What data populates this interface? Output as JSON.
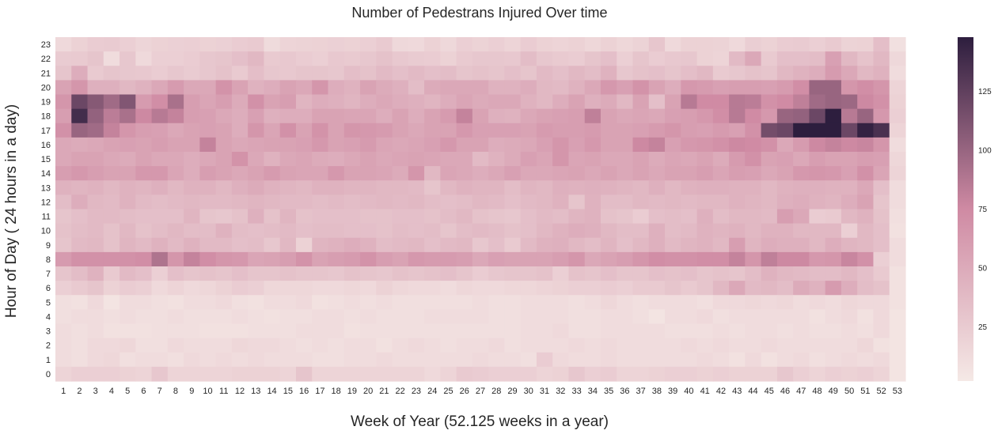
{
  "chart_data": {
    "type": "heatmap",
    "title": "Number of Pedestrans Injured Over time",
    "xlabel": "Week of Year (52.125 weeks in a year)",
    "ylabel": "Hour of Day ( 24 hours in a day)",
    "x": [
      1,
      2,
      3,
      4,
      5,
      6,
      7,
      8,
      9,
      10,
      11,
      12,
      13,
      14,
      15,
      16,
      17,
      18,
      19,
      20,
      21,
      22,
      23,
      24,
      25,
      26,
      27,
      28,
      29,
      30,
      31,
      32,
      33,
      34,
      35,
      36,
      37,
      38,
      39,
      40,
      41,
      42,
      43,
      44,
      45,
      46,
      47,
      48,
      49,
      50,
      51,
      52,
      53
    ],
    "y": [
      23,
      22,
      21,
      20,
      19,
      18,
      17,
      16,
      15,
      14,
      13,
      12,
      11,
      10,
      9,
      8,
      7,
      6,
      5,
      4,
      3,
      2,
      1,
      0
    ],
    "colorbar": {
      "ticks": [
        25,
        50,
        75,
        100,
        125
      ],
      "range": [
        2,
        148
      ]
    },
    "colormap": {
      "low": "#f5e9e6",
      "mid": "#cf8aa3",
      "high": "#2d1e3e"
    },
    "values": [
      [
        14,
        20,
        24,
        25,
        22,
        17,
        20,
        21,
        22,
        20,
        21,
        24,
        26,
        13,
        18,
        19,
        20,
        21,
        20,
        22,
        26,
        15,
        14,
        20,
        15,
        22,
        19,
        22,
        18,
        24,
        20,
        18,
        20,
        16,
        20,
        16,
        19,
        29,
        14,
        20,
        20,
        19,
        14,
        23,
        20,
        24,
        25,
        22,
        26,
        19,
        20,
        35,
        9
      ],
      [
        25,
        26,
        30,
        12,
        28,
        14,
        22,
        22,
        24,
        28,
        30,
        34,
        40,
        26,
        27,
        24,
        22,
        27,
        26,
        28,
        32,
        27,
        25,
        24,
        20,
        26,
        28,
        28,
        27,
        36,
        28,
        26,
        24,
        30,
        34,
        22,
        30,
        24,
        27,
        28,
        20,
        18,
        38,
        52,
        26,
        34,
        34,
        36,
        58,
        40,
        31,
        40,
        15
      ],
      [
        30,
        48,
        26,
        30,
        28,
        27,
        24,
        28,
        25,
        28,
        32,
        26,
        35,
        28,
        27,
        30,
        30,
        28,
        35,
        32,
        38,
        34,
        38,
        34,
        36,
        30,
        32,
        30,
        34,
        30,
        38,
        34,
        40,
        36,
        44,
        28,
        32,
        34,
        30,
        35,
        40,
        26,
        28,
        32,
        30,
        40,
        44,
        48,
        62,
        52,
        40,
        44,
        12
      ],
      [
        56,
        66,
        46,
        46,
        40,
        44,
        52,
        62,
        52,
        52,
        68,
        56,
        44,
        48,
        56,
        52,
        66,
        48,
        44,
        56,
        50,
        46,
        36,
        50,
        52,
        52,
        52,
        44,
        44,
        48,
        40,
        38,
        44,
        52,
        64,
        58,
        68,
        56,
        48,
        64,
        62,
        58,
        60,
        60,
        58,
        62,
        72,
        100,
        100,
        66,
        72,
        66,
        18
      ],
      [
        66,
        120,
        108,
        96,
        110,
        62,
        72,
        92,
        60,
        54,
        60,
        50,
        70,
        56,
        60,
        42,
        48,
        46,
        42,
        48,
        52,
        48,
        46,
        42,
        48,
        54,
        50,
        52,
        52,
        44,
        40,
        48,
        56,
        46,
        50,
        40,
        56,
        34,
        56,
        86,
        74,
        74,
        86,
        84,
        70,
        74,
        82,
        96,
        100,
        98,
        76,
        70,
        20
      ],
      [
        60,
        138,
        102,
        84,
        92,
        76,
        86,
        80,
        60,
        58,
        52,
        48,
        58,
        46,
        48,
        48,
        56,
        56,
        54,
        54,
        48,
        56,
        48,
        56,
        62,
        80,
        56,
        46,
        44,
        52,
        56,
        58,
        60,
        82,
        56,
        52,
        54,
        52,
        58,
        60,
        64,
        72,
        86,
        74,
        64,
        100,
        102,
        120,
        148,
        86,
        100,
        64,
        22
      ],
      [
        70,
        100,
        96,
        80,
        66,
        60,
        58,
        52,
        56,
        58,
        56,
        48,
        66,
        54,
        70,
        56,
        68,
        56,
        66,
        64,
        62,
        56,
        52,
        56,
        56,
        64,
        58,
        58,
        58,
        56,
        62,
        60,
        60,
        62,
        56,
        56,
        58,
        62,
        66,
        60,
        58,
        62,
        58,
        70,
        116,
        120,
        148,
        148,
        148,
        120,
        145,
        135,
        18
      ],
      [
        52,
        50,
        52,
        56,
        58,
        56,
        60,
        56,
        56,
        80,
        56,
        52,
        54,
        56,
        56,
        58,
        64,
        56,
        58,
        62,
        54,
        52,
        54,
        58,
        64,
        56,
        56,
        48,
        50,
        52,
        58,
        66,
        58,
        64,
        56,
        56,
        76,
        80,
        58,
        64,
        66,
        70,
        76,
        74,
        70,
        52,
        62,
        76,
        80,
        76,
        78,
        66,
        12
      ],
      [
        52,
        56,
        56,
        52,
        50,
        56,
        52,
        52,
        48,
        52,
        56,
        68,
        52,
        44,
        52,
        54,
        50,
        48,
        52,
        56,
        52,
        54,
        56,
        54,
        52,
        52,
        38,
        44,
        50,
        58,
        54,
        66,
        54,
        56,
        52,
        52,
        56,
        50,
        54,
        52,
        56,
        50,
        62,
        70,
        56,
        58,
        52,
        60,
        56,
        56,
        60,
        58,
        16
      ],
      [
        60,
        64,
        60,
        56,
        56,
        64,
        64,
        54,
        48,
        60,
        56,
        52,
        56,
        62,
        56,
        54,
        54,
        64,
        56,
        56,
        54,
        50,
        66,
        40,
        54,
        52,
        48,
        52,
        58,
        52,
        52,
        54,
        56,
        52,
        56,
        52,
        56,
        52,
        56,
        56,
        60,
        54,
        60,
        58,
        52,
        56,
        64,
        66,
        64,
        58,
        70,
        54,
        18
      ],
      [
        44,
        42,
        44,
        40,
        44,
        42,
        46,
        40,
        44,
        44,
        40,
        46,
        50,
        44,
        42,
        40,
        44,
        44,
        42,
        42,
        40,
        40,
        38,
        30,
        40,
        44,
        42,
        42,
        36,
        42,
        40,
        46,
        44,
        46,
        44,
        42,
        40,
        46,
        40,
        44,
        46,
        46,
        44,
        44,
        40,
        44,
        46,
        46,
        44,
        44,
        52,
        34,
        12
      ],
      [
        36,
        48,
        40,
        38,
        44,
        38,
        36,
        38,
        40,
        38,
        38,
        40,
        42,
        40,
        38,
        38,
        36,
        38,
        36,
        38,
        40,
        38,
        40,
        36,
        34,
        36,
        40,
        38,
        34,
        38,
        40,
        44,
        30,
        44,
        36,
        36,
        40,
        38,
        40,
        38,
        40,
        40,
        44,
        42,
        40,
        46,
        48,
        44,
        42,
        48,
        56,
        30,
        12
      ],
      [
        30,
        34,
        38,
        38,
        36,
        34,
        34,
        34,
        42,
        30,
        28,
        32,
        46,
        32,
        42,
        32,
        34,
        34,
        34,
        32,
        32,
        34,
        34,
        32,
        36,
        40,
        32,
        30,
        28,
        34,
        38,
        36,
        42,
        44,
        32,
        30,
        24,
        34,
        36,
        34,
        46,
        36,
        40,
        40,
        38,
        60,
        52,
        24,
        26,
        40,
        44,
        32,
        10
      ],
      [
        32,
        36,
        38,
        32,
        40,
        32,
        36,
        40,
        36,
        36,
        44,
        36,
        34,
        36,
        38,
        34,
        36,
        36,
        34,
        34,
        32,
        36,
        34,
        36,
        30,
        36,
        38,
        36,
        32,
        34,
        40,
        44,
        48,
        46,
        40,
        36,
        36,
        46,
        36,
        38,
        44,
        42,
        44,
        40,
        44,
        44,
        40,
        40,
        40,
        22,
        40,
        34,
        8
      ],
      [
        30,
        38,
        40,
        32,
        42,
        38,
        44,
        38,
        44,
        38,
        38,
        34,
        36,
        28,
        40,
        20,
        42,
        44,
        48,
        44,
        36,
        38,
        40,
        34,
        38,
        40,
        28,
        34,
        26,
        38,
        44,
        46,
        40,
        36,
        42,
        34,
        40,
        46,
        38,
        42,
        44,
        40,
        60,
        42,
        48,
        46,
        46,
        40,
        48,
        42,
        40,
        34,
        12
      ],
      [
        62,
        70,
        70,
        70,
        70,
        72,
        90,
        66,
        80,
        72,
        66,
        64,
        54,
        56,
        60,
        68,
        56,
        60,
        62,
        68,
        60,
        56,
        64,
        62,
        62,
        60,
        52,
        58,
        56,
        56,
        56,
        60,
        66,
        52,
        56,
        60,
        66,
        72,
        70,
        70,
        72,
        72,
        80,
        66,
        82,
        76,
        76,
        64,
        66,
        78,
        70,
        22,
        12
      ],
      [
        30,
        36,
        44,
        26,
        38,
        34,
        22,
        34,
        30,
        32,
        30,
        34,
        30,
        30,
        32,
        30,
        30,
        28,
        32,
        30,
        28,
        32,
        30,
        32,
        34,
        30,
        24,
        28,
        30,
        30,
        32,
        22,
        32,
        30,
        34,
        30,
        30,
        34,
        32,
        34,
        30,
        32,
        30,
        36,
        44,
        40,
        38,
        36,
        36,
        40,
        34,
        26,
        8
      ],
      [
        22,
        26,
        30,
        20,
        24,
        22,
        14,
        18,
        14,
        16,
        20,
        24,
        22,
        16,
        16,
        16,
        14,
        14,
        16,
        14,
        20,
        16,
        14,
        14,
        12,
        16,
        14,
        14,
        16,
        16,
        18,
        20,
        22,
        22,
        24,
        22,
        26,
        26,
        30,
        26,
        30,
        40,
        52,
        38,
        40,
        36,
        50,
        44,
        62,
        48,
        36,
        32,
        8
      ],
      [
        10,
        8,
        14,
        6,
        12,
        12,
        10,
        8,
        12,
        12,
        14,
        10,
        8,
        12,
        12,
        14,
        8,
        10,
        12,
        10,
        12,
        10,
        10,
        10,
        10,
        10,
        12,
        10,
        10,
        12,
        12,
        12,
        10,
        12,
        16,
        12,
        10,
        12,
        12,
        12,
        10,
        14,
        14,
        16,
        14,
        16,
        12,
        14,
        12,
        16,
        14,
        14,
        8
      ],
      [
        10,
        12,
        12,
        10,
        12,
        10,
        10,
        12,
        10,
        10,
        10,
        12,
        10,
        8,
        10,
        10,
        12,
        12,
        10,
        12,
        10,
        10,
        10,
        12,
        12,
        12,
        12,
        10,
        10,
        12,
        12,
        12,
        10,
        10,
        12,
        12,
        10,
        6,
        12,
        12,
        14,
        10,
        12,
        12,
        12,
        12,
        12,
        8,
        12,
        14,
        8,
        14,
        6
      ],
      [
        12,
        10,
        12,
        8,
        8,
        8,
        10,
        10,
        10,
        8,
        8,
        8,
        10,
        10,
        10,
        12,
        12,
        12,
        8,
        10,
        10,
        10,
        10,
        10,
        10,
        10,
        10,
        10,
        10,
        12,
        12,
        14,
        10,
        10,
        12,
        12,
        12,
        12,
        10,
        10,
        10,
        12,
        10,
        12,
        12,
        10,
        12,
        10,
        10,
        12,
        10,
        14,
        6
      ],
      [
        12,
        10,
        14,
        14,
        16,
        10,
        10,
        14,
        12,
        12,
        12,
        16,
        14,
        14,
        12,
        10,
        12,
        10,
        12,
        12,
        8,
        12,
        14,
        12,
        10,
        12,
        12,
        14,
        10,
        12,
        12,
        12,
        14,
        12,
        14,
        12,
        12,
        12,
        12,
        14,
        12,
        14,
        12,
        12,
        14,
        12,
        12,
        12,
        12,
        12,
        16,
        8,
        6
      ],
      [
        12,
        10,
        14,
        16,
        10,
        12,
        12,
        10,
        14,
        12,
        14,
        12,
        14,
        12,
        12,
        12,
        10,
        10,
        12,
        12,
        14,
        12,
        12,
        12,
        12,
        12,
        14,
        12,
        12,
        10,
        24,
        14,
        12,
        12,
        14,
        12,
        12,
        12,
        12,
        12,
        14,
        12,
        8,
        14,
        8,
        12,
        14,
        10,
        12,
        14,
        12,
        14,
        6
      ],
      [
        18,
        22,
        22,
        22,
        20,
        18,
        28,
        18,
        18,
        18,
        18,
        20,
        20,
        20,
        18,
        30,
        18,
        18,
        18,
        18,
        18,
        18,
        18,
        14,
        18,
        26,
        24,
        22,
        22,
        22,
        18,
        20,
        28,
        22,
        24,
        18,
        18,
        20,
        22,
        22,
        20,
        22,
        20,
        20,
        20,
        28,
        22,
        18,
        22,
        20,
        22,
        18,
        6
      ]
    ]
  }
}
